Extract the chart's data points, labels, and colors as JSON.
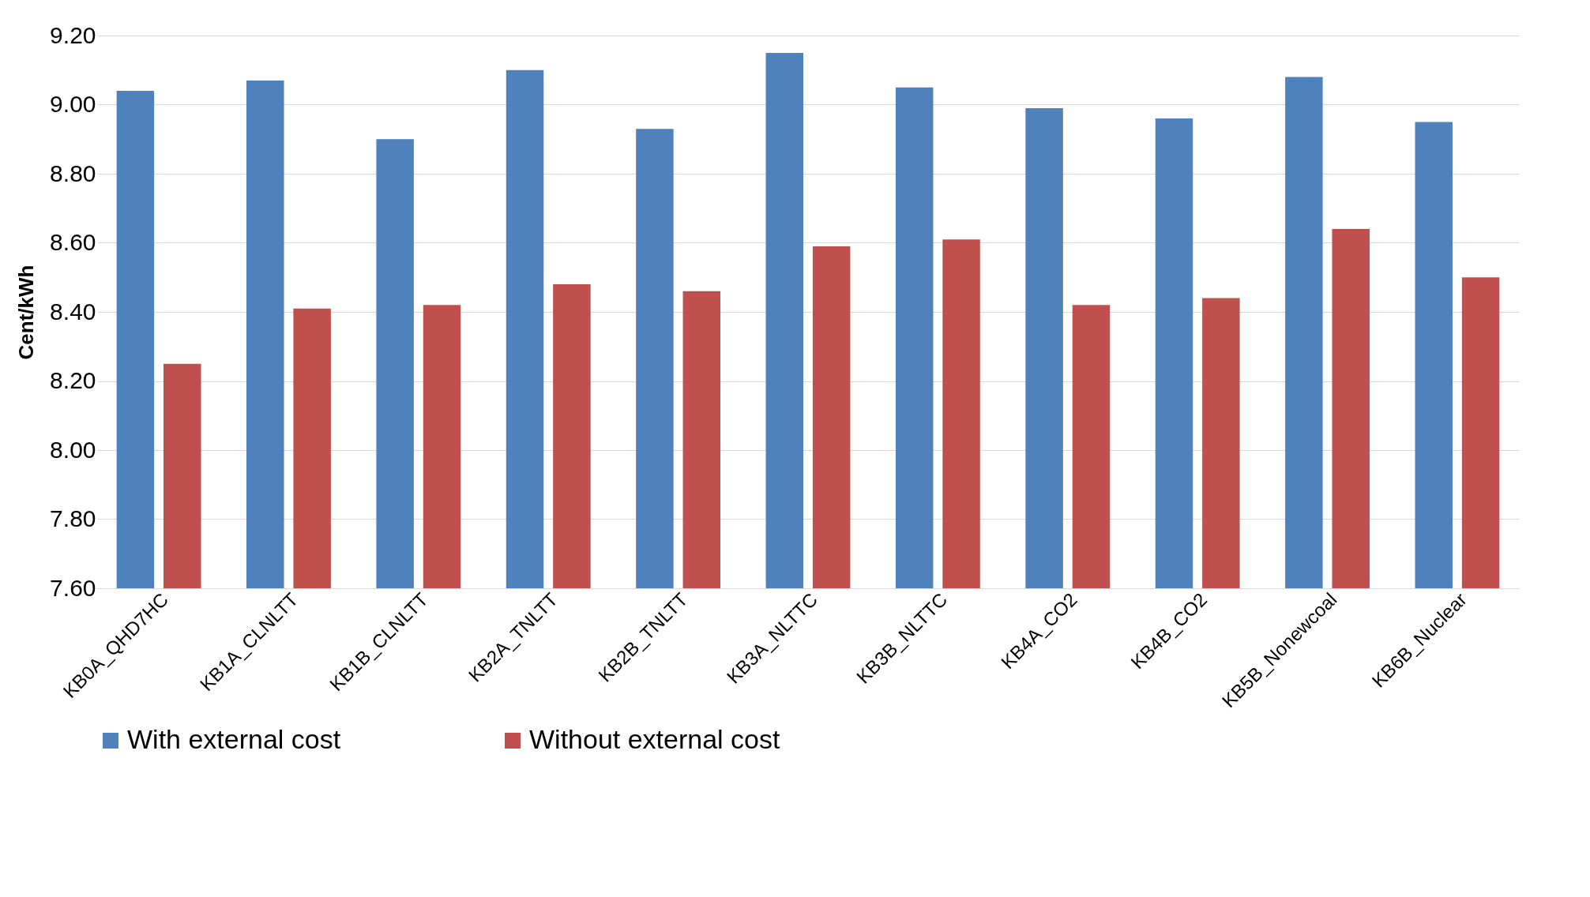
{
  "chart_data": {
    "type": "bar",
    "ylabel": "Cent/kWh",
    "categories": [
      "KB0A_QHD7HC",
      "KB1A_CLNLTT",
      "KB1B_CLNLTT",
      "KB2A_TNLTT",
      "KB2B_TNLTT",
      "KB3A_NLTTC",
      "KB3B_NLTTC",
      "KB4A_CO2",
      "KB4B_CO2",
      "KB5B_Nonewcoal",
      "KB6B_Nuclear"
    ],
    "series": [
      {
        "name": "With external cost",
        "color": "#4f81bd",
        "values": [
          9.04,
          9.07,
          8.9,
          9.1,
          8.93,
          9.15,
          9.05,
          8.99,
          8.96,
          9.08,
          8.95
        ]
      },
      {
        "name": "Without external cost",
        "color": "#c0504d",
        "values": [
          8.25,
          8.41,
          8.42,
          8.48,
          8.46,
          8.59,
          8.61,
          8.42,
          8.44,
          8.64,
          8.5
        ]
      }
    ],
    "ylim": [
      7.6,
      9.2
    ],
    "yticks": [
      {
        "value": 7.6,
        "label": "7.60"
      },
      {
        "value": 7.8,
        "label": "7.80"
      },
      {
        "value": 8.0,
        "label": "8.00"
      },
      {
        "value": 8.2,
        "label": "8.20"
      },
      {
        "value": 8.4,
        "label": "8.40"
      },
      {
        "value": 8.6,
        "label": "8.60"
      },
      {
        "value": 8.8,
        "label": "8.80"
      },
      {
        "value": 9.0,
        "label": "9.00"
      },
      {
        "value": 9.2,
        "label": "9.20"
      }
    ],
    "grid": "y",
    "legend": "bottom"
  }
}
